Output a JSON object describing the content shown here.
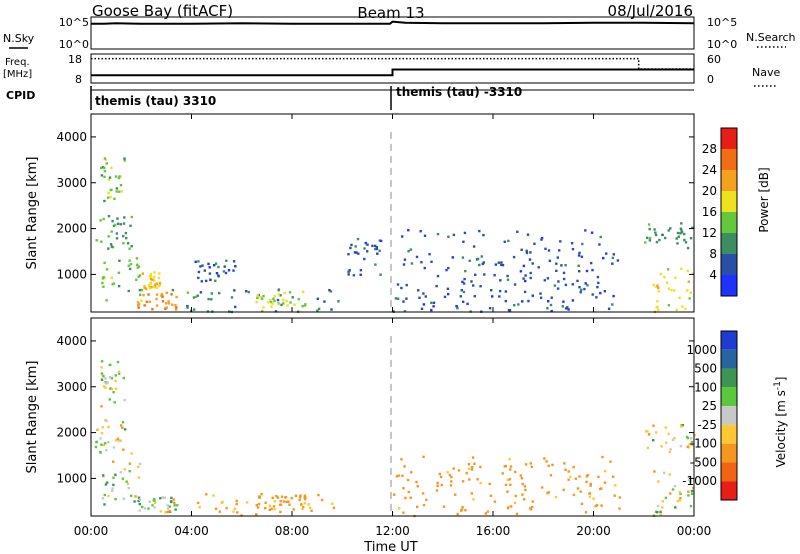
{
  "header": {
    "title_left": "Goose Bay (fitACF)",
    "title_center": "Beam 13",
    "title_right": "08/Jul/2016"
  },
  "noise_panel": {
    "left_label": "N.Sky",
    "right_label": "N.Search",
    "tick_top": "10^5",
    "tick_bottom": "10^0"
  },
  "freq_panel": {
    "left_label_line1": "Freq.",
    "left_label_line2": "[MHz]",
    "right_label": "Nave",
    "left_ticks": [
      "18",
      "8"
    ],
    "right_ticks": [
      "60",
      "0"
    ]
  },
  "cpid": {
    "label": "CPID",
    "segments": [
      {
        "start_hour": 0,
        "text": "themis (tau) 3310"
      },
      {
        "start_hour": 12,
        "text": "themis (tau) -3310"
      }
    ]
  },
  "xaxis": {
    "title": "Time UT",
    "tick_labels": [
      "00:00",
      "04:00",
      "08:00",
      "12:00",
      "16:00",
      "20:00",
      "00:00"
    ],
    "tick_hours": [
      0,
      4,
      8,
      12,
      16,
      20,
      24
    ]
  },
  "range_axis": {
    "title": "Slant Range [km]",
    "tick_labels": [
      "1000",
      "2000",
      "3000",
      "4000"
    ],
    "tick_values": [
      1000,
      2000,
      3000,
      4000
    ],
    "min": 180,
    "max": 4500
  },
  "power_scale": {
    "title": "Power [dB]",
    "tick_labels": [
      "4",
      "8",
      "12",
      "16",
      "20",
      "24",
      "28"
    ],
    "colors": [
      "#1e32ff",
      "#2850a8",
      "#3c8c64",
      "#64c83c",
      "#f0e11e",
      "#f5a01e",
      "#f06e14",
      "#e61e14"
    ]
  },
  "velocity_scale": {
    "title": "Velocity [m s^-1]",
    "tick_labels": [
      "1000",
      "500",
      "100",
      "25",
      "-25",
      "-100",
      "-500",
      "-1000"
    ],
    "colors": [
      "#1e3cd2",
      "#2864a0",
      "#3c9650",
      "#5ac83c",
      "#c8c8c8",
      "#ffc832",
      "#f5961e",
      "#f06414",
      "#e61e14"
    ]
  },
  "chart_data": [
    {
      "type": "line",
      "title": "N.Sky / N.Search",
      "x": [
        0,
        0.5,
        1,
        2,
        4,
        6,
        8,
        10,
        11.9,
        12,
        12.5,
        14,
        16,
        18,
        20,
        22,
        24
      ],
      "series": [
        {
          "name": "N.Sky",
          "values_log10": [
            4.3,
            4.3,
            4.4,
            4.3,
            4.3,
            4.4,
            4.3,
            4.3,
            4.3,
            4.7,
            4.5,
            4.4,
            4.4,
            4.4,
            4.5,
            4.5,
            4.4
          ]
        }
      ],
      "ylim_log10": [
        0,
        5
      ]
    },
    {
      "type": "line",
      "title": "Freq. / Nave",
      "x": [
        0,
        12,
        12,
        21.8,
        21.8,
        24
      ],
      "series": [
        {
          "name": "Freq.",
          "values": [
            10.6,
            10.6,
            12.8,
            12.8,
            12.8,
            12.8
          ]
        },
        {
          "name": "Nave",
          "values": [
            17,
            17,
            17,
            17,
            13,
            13
          ]
        }
      ],
      "ylim": [
        8,
        18
      ]
    },
    {
      "type": "heatmap",
      "title": "Power [dB]",
      "xlim_hours": [
        0,
        24
      ],
      "ylim_km": [
        180,
        4500
      ],
      "regions": [
        {
          "t0": 0.1,
          "t1": 1.6,
          "r0": 1550,
          "r1": 2300,
          "value_db": 12
        },
        {
          "t0": 0.3,
          "t1": 1.3,
          "r0": 2600,
          "r1": 3600,
          "value_db": 14
        },
        {
          "t0": 0.4,
          "t1": 2.0,
          "r0": 450,
          "r1": 1400,
          "value_db": 14
        },
        {
          "t0": 1.8,
          "t1": 3.4,
          "r0": 250,
          "r1": 650,
          "value_db": 24
        },
        {
          "t0": 2.0,
          "t1": 2.7,
          "r0": 700,
          "r1": 1100,
          "value_db": 20
        },
        {
          "t0": 4.0,
          "t1": 5.7,
          "r0": 850,
          "r1": 1350,
          "value_db": 6
        },
        {
          "t0": 3.0,
          "t1": 10.0,
          "r0": 200,
          "r1": 700,
          "value_db": 10
        },
        {
          "t0": 6.5,
          "t1": 8.5,
          "r0": 280,
          "r1": 650,
          "value_db": 16
        },
        {
          "t0": 10.2,
          "t1": 11.6,
          "r0": 1000,
          "r1": 1800,
          "value_db": 6
        },
        {
          "t0": 12.0,
          "t1": 21.0,
          "r0": 200,
          "r1": 2000,
          "value_db": 6
        },
        {
          "t0": 22.0,
          "t1": 24.0,
          "r0": 1600,
          "r1": 2200,
          "value_db": 10
        },
        {
          "t0": 22.3,
          "t1": 24.0,
          "r0": 200,
          "r1": 1200,
          "value_db": 18
        }
      ]
    },
    {
      "type": "heatmap",
      "title": "Velocity [m s^-1]",
      "xlim_hours": [
        0,
        24
      ],
      "ylim_km": [
        180,
        4500
      ],
      "regions": [
        {
          "t0": 0.1,
          "t1": 1.6,
          "r0": 1550,
          "r1": 2300,
          "value_ms": 0
        },
        {
          "t0": 0.3,
          "t1": 1.3,
          "r0": 2600,
          "r1": 3600,
          "value_ms": 0
        },
        {
          "t0": 0.4,
          "t1": 2.0,
          "r0": 450,
          "r1": 1400,
          "value_ms": 0
        },
        {
          "t0": 1.8,
          "t1": 3.4,
          "r0": 250,
          "r1": 650,
          "value_ms": 50
        },
        {
          "t0": 3.0,
          "t1": 10.0,
          "r0": 200,
          "r1": 700,
          "value_ms": -150
        },
        {
          "t0": 6.5,
          "t1": 8.5,
          "r0": 280,
          "r1": 650,
          "value_ms": -300
        },
        {
          "t0": 12.0,
          "t1": 21.0,
          "r0": 200,
          "r1": 1500,
          "value_ms": -200
        },
        {
          "t0": 22.0,
          "t1": 24.0,
          "r0": 1600,
          "r1": 2200,
          "value_ms": 0
        },
        {
          "t0": 22.3,
          "t1": 24.0,
          "r0": 200,
          "r1": 1200,
          "value_ms": 0
        }
      ]
    }
  ]
}
